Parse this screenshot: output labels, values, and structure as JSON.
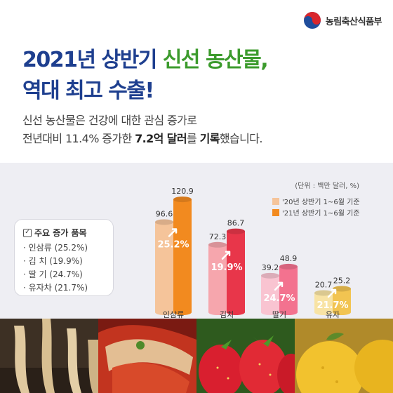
{
  "logo": {
    "text": "농림축산식품부"
  },
  "headline": {
    "line1_part1": "2021년 상반기 ",
    "line1_part2": "신선 농산물,",
    "line2": "역대 최고 수출!"
  },
  "subtitle": {
    "line1": "신선 농산물은 건강에 대한 관심 증가로",
    "line2_pre": "전년대비 11.4% 증가한 ",
    "line2_bold1": "7.2억 달러",
    "line2_mid": "를 ",
    "line2_bold2": "기록",
    "line2_post": "했습니다."
  },
  "key_items": {
    "title": "주요 증가 품목",
    "items": [
      "· 인삼류 (25.2%)",
      "· 김   치 (19.9%)",
      "· 딸   기 (24.7%)",
      "· 유자차 (21.7%)"
    ]
  },
  "chart_data": {
    "type": "bar",
    "unit": "(단위 : 백만 달러, %)",
    "categories": [
      "인삼류",
      "김치",
      "딸기",
      "유자"
    ],
    "series": [
      {
        "name": "'20년 상반기 1~6월 기준",
        "values": [
          96.6,
          72.3,
          39.2,
          20.7
        ],
        "value_labels": [
          "96.6",
          "72.3",
          "39.2",
          "20.7"
        ]
      },
      {
        "name": "'21년 상반기 1~6월 기준",
        "values": [
          120.9,
          86.7,
          48.9,
          25.2
        ],
        "value_labels": [
          "120.9",
          "86.7",
          "48.9",
          "25.2"
        ]
      }
    ],
    "growth": [
      "25.2%",
      "19.9%",
      "24.7%",
      "21.7%"
    ],
    "ylim": [
      0,
      130
    ],
    "colors": {
      "cat0": [
        "#f5c49a",
        "#f28a1f"
      ],
      "cat1": [
        "#f6a6ad",
        "#e8364a"
      ],
      "cat2": [
        "#f9c4d1",
        "#f3728f"
      ],
      "cat3": [
        "#f8e3a4",
        "#f2c451"
      ]
    }
  },
  "colors": {
    "headline_blue": "#1e3f8f",
    "headline_green": "#3c9b2d",
    "panel_bg": "#eeeef3"
  }
}
